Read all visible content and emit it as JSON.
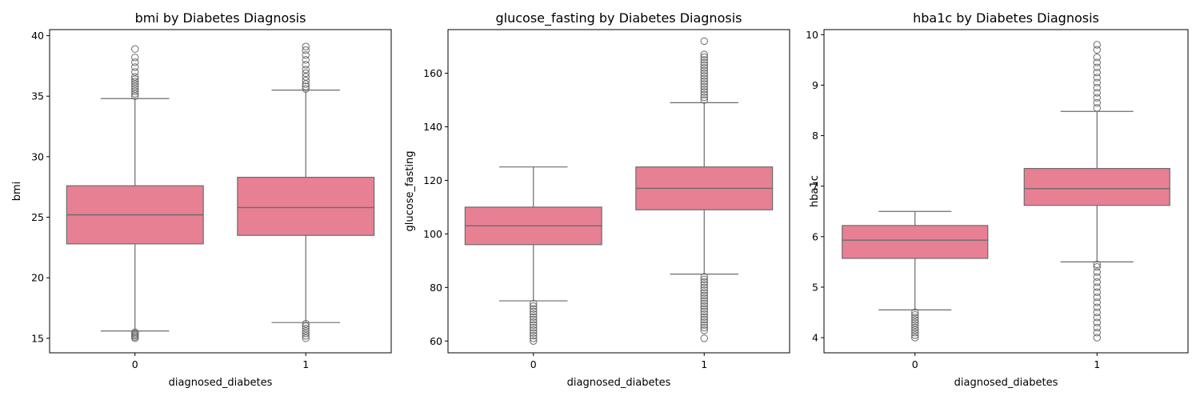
{
  "colors": {
    "box_fill": "#e88094",
    "line": "#6b6b6b",
    "axes": "#000000"
  },
  "chart_data": [
    {
      "type": "box",
      "title": "bmi by Diabetes Diagnosis",
      "xlabel": "diagnosed_diabetes",
      "ylabel": "bmi",
      "categories": [
        "0",
        "1"
      ],
      "ylim": [
        13.8,
        40.5
      ],
      "yticks": [
        15,
        20,
        25,
        30,
        35,
        40
      ],
      "ytick_labels": [
        "15",
        "20",
        "25",
        "30",
        "35",
        "40"
      ],
      "boxes": [
        {
          "category": "0",
          "whisker_low": 15.6,
          "q1": 22.8,
          "median": 25.2,
          "q3": 27.6,
          "whisker_high": 34.8,
          "outliers_low": [
            15.0,
            15.1,
            15.2,
            15.3,
            15.4,
            15.5
          ],
          "outliers_high": [
            35.0,
            35.2,
            35.4,
            35.6,
            35.8,
            36.0,
            36.2,
            36.4,
            36.6,
            37.0,
            37.4,
            37.8,
            38.2,
            38.9
          ]
        },
        {
          "category": "1",
          "whisker_low": 16.3,
          "q1": 23.5,
          "median": 25.8,
          "q3": 28.3,
          "whisker_high": 35.5,
          "outliers_low": [
            15.0,
            15.2,
            15.4,
            15.6,
            15.8,
            16.0,
            16.2
          ],
          "outliers_high": [
            35.6,
            35.8,
            36.0,
            36.3,
            36.6,
            36.9,
            37.2,
            37.6,
            38.0,
            38.4,
            38.8,
            39.1
          ]
        }
      ]
    },
    {
      "type": "box",
      "title": "glucose_fasting by Diabetes Diagnosis",
      "xlabel": "diagnosed_diabetes",
      "ylabel": "glucose_fasting",
      "categories": [
        "0",
        "1"
      ],
      "ylim": [
        55.6,
        176.3
      ],
      "yticks": [
        60,
        80,
        100,
        120,
        140,
        160
      ],
      "ytick_labels": [
        "60",
        "80",
        "100",
        "120",
        "140",
        "160"
      ],
      "boxes": [
        {
          "category": "0",
          "whisker_low": 75,
          "q1": 96,
          "median": 103,
          "q3": 110,
          "whisker_high": 125,
          "outliers_low": [
            60,
            61,
            62,
            63,
            64,
            65,
            66,
            67,
            68,
            69,
            70,
            71,
            72,
            73,
            74
          ],
          "outliers_high": []
        },
        {
          "category": "1",
          "whisker_low": 85,
          "q1": 109,
          "median": 117,
          "q3": 125,
          "whisker_high": 149,
          "outliers_low": [
            61,
            64,
            65,
            66,
            67,
            68,
            69,
            70,
            71,
            72,
            73,
            74,
            75,
            76,
            77,
            78,
            79,
            80,
            81,
            82,
            83,
            84
          ],
          "outliers_high": [
            150,
            151,
            152,
            153,
            154,
            155,
            156,
            157,
            158,
            159,
            160,
            161,
            162,
            163,
            164,
            165,
            166,
            167,
            172
          ]
        }
      ]
    },
    {
      "type": "box",
      "title": "hba1c by Diabetes Diagnosis",
      "xlabel": "diagnosed_diabetes",
      "ylabel": "hba1c",
      "categories": [
        "0",
        "1"
      ],
      "ylim": [
        3.7,
        10.1
      ],
      "yticks": [
        4,
        5,
        6,
        7,
        8,
        9,
        10
      ],
      "ytick_labels": [
        "4",
        "5",
        "6",
        "7",
        "8",
        "9",
        "10"
      ],
      "boxes": [
        {
          "category": "0",
          "whisker_low": 4.55,
          "q1": 5.57,
          "median": 5.93,
          "q3": 6.22,
          "whisker_high": 6.5,
          "outliers_low": [
            4.0,
            4.05,
            4.1,
            4.15,
            4.2,
            4.25,
            4.3,
            4.35,
            4.4,
            4.45,
            4.5
          ],
          "outliers_high": []
        },
        {
          "category": "1",
          "whisker_low": 5.5,
          "q1": 6.62,
          "median": 6.95,
          "q3": 7.35,
          "whisker_high": 8.48,
          "outliers_low": [
            4.0,
            4.1,
            4.2,
            4.3,
            4.4,
            4.5,
            4.6,
            4.7,
            4.8,
            4.9,
            5.0,
            5.1,
            5.2,
            5.3,
            5.4,
            5.45
          ],
          "outliers_high": [
            8.55,
            8.65,
            8.75,
            8.85,
            8.95,
            9.05,
            9.15,
            9.25,
            9.35,
            9.45,
            9.55,
            9.7,
            9.8
          ]
        }
      ]
    }
  ]
}
